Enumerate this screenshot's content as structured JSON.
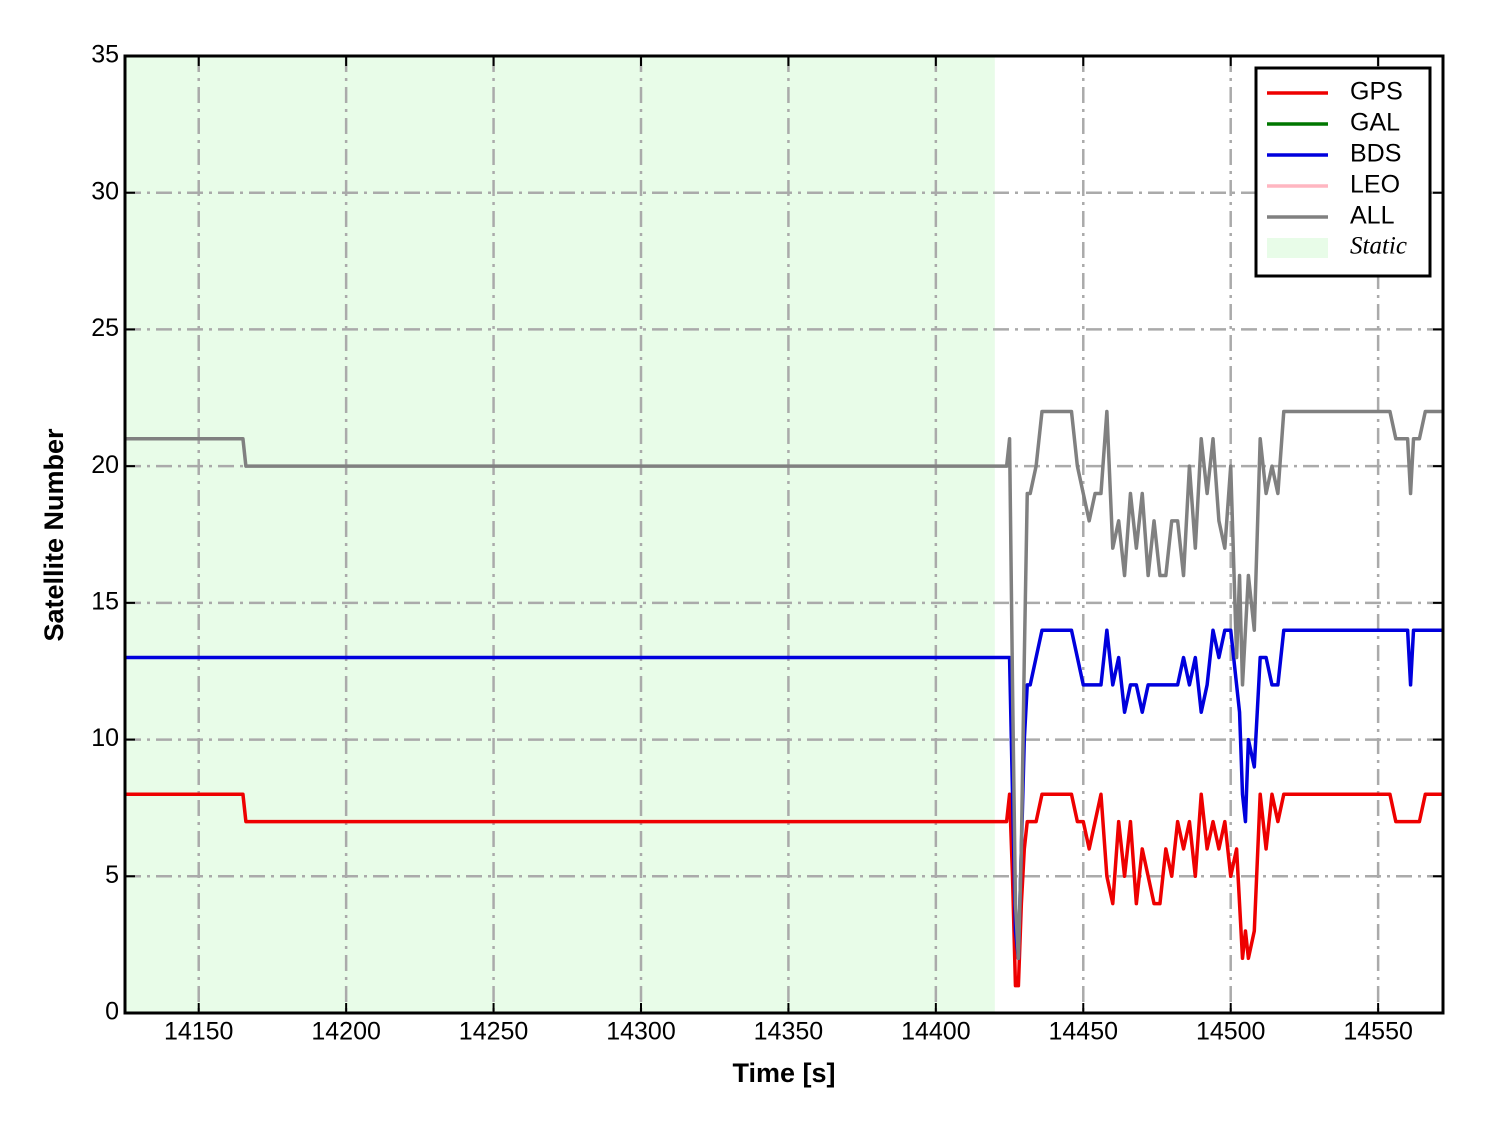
{
  "chart_data": {
    "type": "line",
    "xlabel": "Time [s]",
    "ylabel": "Satellite Number",
    "xlim": [
      14125,
      14572
    ],
    "ylim": [
      0,
      35
    ],
    "xticks": [
      14150,
      14200,
      14250,
      14300,
      14350,
      14400,
      14450,
      14500,
      14550
    ],
    "yticks": [
      0,
      5,
      10,
      15,
      20,
      25,
      30,
      35
    ],
    "grid": true,
    "legend": "upper right",
    "static_region": {
      "label": "Static",
      "xlim": [
        14125,
        14420
      ],
      "color": "#e8fce8"
    },
    "x": [
      14125,
      14165,
      14166,
      14424,
      14425,
      14426,
      14427,
      14428,
      14429,
      14430,
      14431,
      14432,
      14434,
      14436,
      14440,
      14446,
      14448,
      14450,
      14452,
      14454,
      14456,
      14458,
      14460,
      14462,
      14464,
      14466,
      14468,
      14470,
      14472,
      14474,
      14476,
      14478,
      14480,
      14482,
      14484,
      14486,
      14488,
      14490,
      14492,
      14494,
      14496,
      14498,
      14500,
      14502,
      14503,
      14504,
      14505,
      14506,
      14508,
      14510,
      14512,
      14514,
      14516,
      14518,
      14530,
      14554,
      14556,
      14560,
      14561,
      14562,
      14564,
      14566,
      14568,
      14572
    ],
    "series": [
      {
        "name": "GPS",
        "color": "#ee0000",
        "values": [
          8,
          8,
          7,
          7,
          8,
          5,
          1,
          1,
          4,
          6,
          7,
          7,
          7,
          8,
          8,
          8,
          7,
          7,
          6,
          7,
          8,
          5,
          4,
          7,
          5,
          7,
          4,
          6,
          5,
          4,
          4,
          6,
          5,
          7,
          6,
          7,
          5,
          8,
          6,
          7,
          6,
          7,
          5,
          6,
          4,
          2,
          3,
          2,
          3,
          8,
          6,
          8,
          7,
          8,
          8,
          8,
          7,
          7,
          7,
          7,
          7,
          8,
          8,
          8
        ]
      },
      {
        "name": "GAL",
        "color": "#007700",
        "values": [
          null,
          null,
          null,
          null,
          null,
          null,
          null,
          null,
          null,
          null,
          null,
          null,
          null,
          null,
          null,
          null,
          null,
          null,
          null,
          null,
          null,
          null,
          null,
          null,
          null,
          null,
          null,
          null,
          null,
          null,
          null,
          null,
          null,
          null,
          null,
          null,
          null,
          null,
          null,
          null,
          null,
          null,
          null,
          null,
          null,
          null,
          null,
          null,
          null,
          null,
          null,
          null,
          null,
          null,
          null,
          null,
          null,
          null,
          null,
          null,
          null,
          null,
          null,
          null
        ]
      },
      {
        "name": "BDS",
        "color": "#0000dd",
        "values": [
          13,
          13,
          13,
          13,
          13,
          8,
          3,
          2,
          6,
          10,
          12,
          12,
          13,
          14,
          14,
          14,
          13,
          12,
          12,
          12,
          12,
          14,
          12,
          13,
          11,
          12,
          12,
          11,
          12,
          12,
          12,
          12,
          12,
          12,
          13,
          12,
          13,
          11,
          12,
          14,
          13,
          14,
          14,
          12,
          11,
          8,
          7,
          10,
          9,
          13,
          13,
          12,
          12,
          14,
          14,
          14,
          14,
          14,
          12,
          14,
          14,
          14,
          14,
          14
        ]
      },
      {
        "name": "LEO",
        "color": "#ffb6c1",
        "values": [
          null,
          null,
          null,
          null,
          null,
          null,
          null,
          null,
          null,
          null,
          null,
          null,
          null,
          null,
          null,
          null,
          null,
          null,
          null,
          null,
          null,
          null,
          null,
          null,
          null,
          null,
          null,
          null,
          null,
          null,
          null,
          null,
          null,
          null,
          null,
          null,
          null,
          null,
          null,
          null,
          null,
          null,
          null,
          null,
          null,
          null,
          null,
          null,
          null,
          null,
          null,
          null,
          null,
          null,
          null,
          null,
          null,
          null,
          null,
          null,
          null,
          null,
          null,
          null
        ]
      },
      {
        "name": "ALL",
        "color": "#808080",
        "values": [
          21,
          21,
          20,
          20,
          21,
          12,
          4,
          2,
          6,
          13,
          19,
          19,
          20,
          22,
          22,
          22,
          20,
          19,
          18,
          19,
          19,
          22,
          17,
          18,
          16,
          19,
          17,
          19,
          16,
          18,
          16,
          16,
          18,
          18,
          16,
          20,
          17,
          21,
          19,
          21,
          18,
          17,
          20,
          13,
          16,
          12,
          14,
          16,
          14,
          21,
          19,
          20,
          19,
          22,
          22,
          22,
          21,
          21,
          19,
          21,
          21,
          22,
          22,
          22
        ]
      }
    ]
  }
}
